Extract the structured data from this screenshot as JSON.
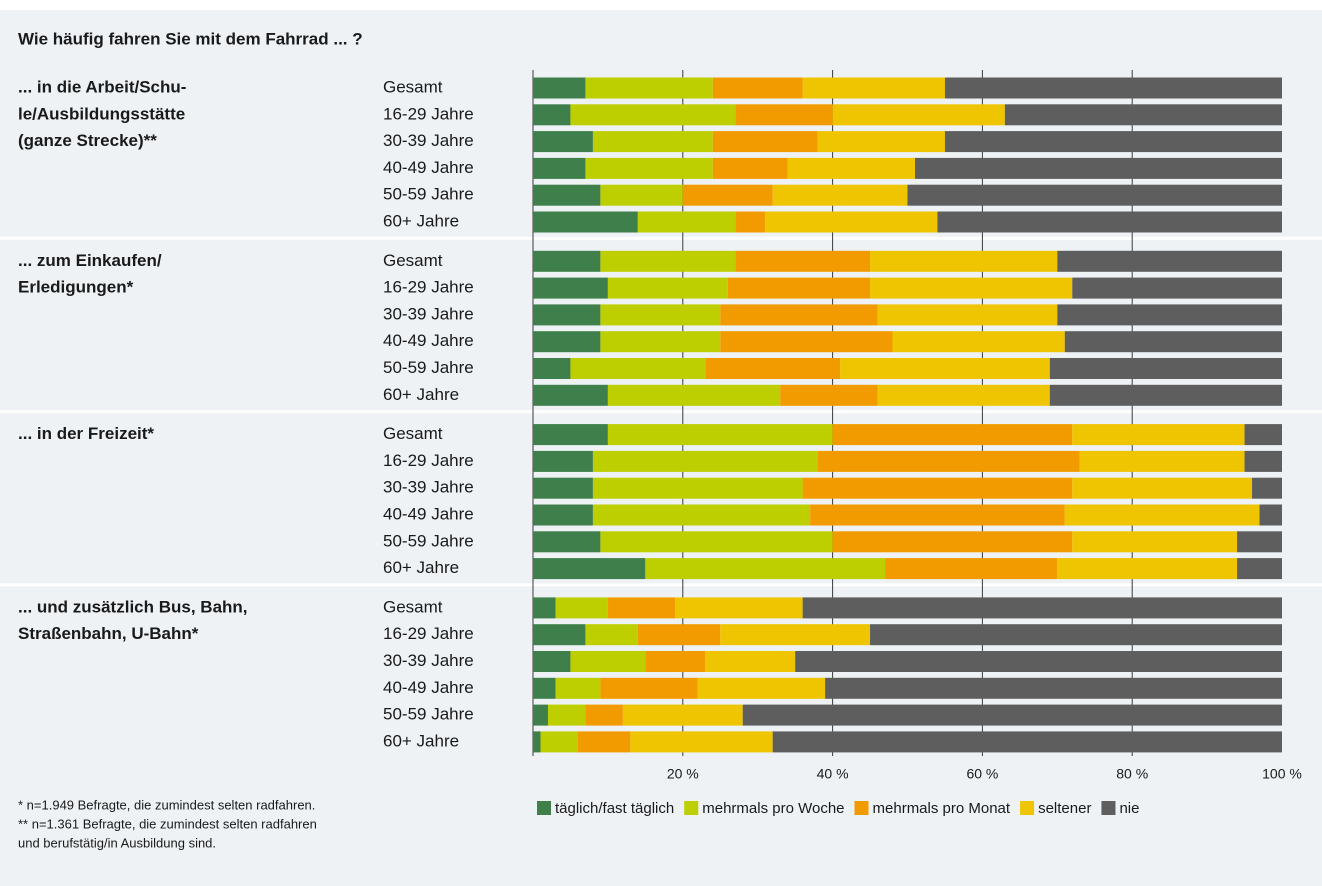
{
  "chart_data": {
    "type": "bar",
    "orientation": "horizontal",
    "stacked": true,
    "title": "Wie häufig fahren Sie mit dem Fahrrad ... ?",
    "series": [
      {
        "name": "täglich/fast täglich",
        "color": "#3e7f4b"
      },
      {
        "name": "mehrmals pro Woche",
        "color": "#bdcf00"
      },
      {
        "name": "mehrmals pro Monat",
        "color": "#f29b00"
      },
      {
        "name": "seltener",
        "color": "#efc400"
      },
      {
        "name": "nie",
        "color": "#5e5e5e"
      }
    ],
    "groups": [
      {
        "label": [
          "... in die Arbeit/Schu-",
          "le/Ausbildungsstätte",
          "(ganze Strecke)**"
        ],
        "categories": [
          "Gesamt",
          "16-29 Jahre",
          "30-39 Jahre",
          "40-49 Jahre",
          "50-59 Jahre",
          "60+ Jahre"
        ],
        "values": [
          [
            7,
            17,
            12,
            19,
            45
          ],
          [
            5,
            22,
            13,
            23,
            37
          ],
          [
            8,
            16,
            14,
            17,
            45
          ],
          [
            7,
            17,
            10,
            17,
            49
          ],
          [
            9,
            11,
            12,
            18,
            50
          ],
          [
            14,
            13,
            4,
            23,
            46
          ]
        ]
      },
      {
        "label": [
          "... zum Einkaufen/",
          "Erledigungen*"
        ],
        "categories": [
          "Gesamt",
          "16-29 Jahre",
          "30-39 Jahre",
          "40-49 Jahre",
          "50-59 Jahre",
          "60+ Jahre"
        ],
        "values": [
          [
            9,
            18,
            18,
            25,
            30
          ],
          [
            10,
            16,
            19,
            27,
            28
          ],
          [
            9,
            16,
            21,
            24,
            30
          ],
          [
            9,
            16,
            23,
            23,
            29
          ],
          [
            5,
            18,
            18,
            28,
            31
          ],
          [
            10,
            23,
            13,
            23,
            31
          ]
        ]
      },
      {
        "label": [
          "... in der Freizeit*"
        ],
        "categories": [
          "Gesamt",
          "16-29 Jahre",
          "30-39 Jahre",
          "40-49 Jahre",
          "50-59 Jahre",
          "60+ Jahre"
        ],
        "values": [
          [
            10,
            30,
            32,
            23,
            5
          ],
          [
            8,
            30,
            35,
            22,
            5
          ],
          [
            8,
            28,
            36,
            24,
            4
          ],
          [
            8,
            29,
            34,
            26,
            3
          ],
          [
            9,
            31,
            32,
            22,
            6
          ],
          [
            15,
            32,
            23,
            24,
            6
          ]
        ]
      },
      {
        "label": [
          "... und zusätzlich Bus, Bahn,",
          "Straßenbahn, U-Bahn*"
        ],
        "categories": [
          "Gesamt",
          "16-29 Jahre",
          "30-39 Jahre",
          "40-49 Jahre",
          "50-59 Jahre",
          "60+ Jahre"
        ],
        "values": [
          [
            3,
            7,
            9,
            17,
            64
          ],
          [
            7,
            7,
            11,
            20,
            55
          ],
          [
            5,
            10,
            8,
            12,
            65
          ],
          [
            3,
            6,
            13,
            17,
            61
          ],
          [
            2,
            5,
            5,
            16,
            72
          ],
          [
            1,
            5,
            7,
            19,
            68
          ]
        ]
      }
    ],
    "xlim": [
      0,
      100
    ],
    "xticks": [
      {
        "value": 20,
        "label": "20 %"
      },
      {
        "value": 40,
        "label": "40 %"
      },
      {
        "value": 60,
        "label": "60 %"
      },
      {
        "value": 80,
        "label": "80 %"
      },
      {
        "value": 100,
        "label": "100 %"
      }
    ],
    "grid": true,
    "legend": "bottom",
    "notes": [
      "* n=1.949 Befragte, die zumindest selten radfahren.",
      "** n=1.361 Befragte, die zumindest selten radfahren",
      "und berufstätig/in Ausbildung sind."
    ]
  }
}
